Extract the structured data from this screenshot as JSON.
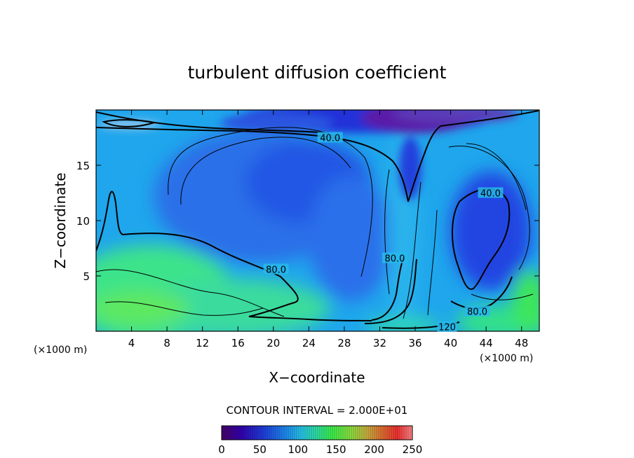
{
  "chart_data": {
    "type": "contour",
    "title": "turbulent diffusion coefficient",
    "xlabel": "X−coordinate",
    "ylabel": "Z−coordinate",
    "x_unit": "(×1000 m)",
    "z_unit": "(×1000 m)",
    "xlim": [
      0,
      50
    ],
    "ylim": [
      0,
      20
    ],
    "xticks": [
      4,
      8,
      12,
      16,
      20,
      24,
      28,
      32,
      36,
      40,
      44,
      48
    ],
    "yticks": [
      5,
      10,
      15
    ],
    "contour_interval_text": "CONTOUR INTERVAL = 2.000E+01",
    "contour_interval": 20,
    "contour_labels": [
      {
        "text": "40.0",
        "x": 26.4,
        "z": 17.5
      },
      {
        "text": "40.0",
        "x": 44.5,
        "z": 12.5
      },
      {
        "text": "80.0",
        "x": 20.3,
        "z": 5.6
      },
      {
        "text": "80.0",
        "x": 33.7,
        "z": 6.6
      },
      {
        "text": "80.0",
        "x": 43.0,
        "z": 1.8
      },
      {
        "text": "120",
        "x": 39.6,
        "z": 0.4
      }
    ],
    "colorbar": {
      "min": 0,
      "max": 250,
      "ticks": [
        "0",
        "50",
        "100",
        "150",
        "200",
        "250"
      ],
      "colors": [
        "#4a006a",
        "#3300b0",
        "#1f3fe0",
        "#1e8ef0",
        "#27c6e8",
        "#2fe0a0",
        "#3cf04a",
        "#8fe040",
        "#c8b040",
        "#e07030",
        "#f03030",
        "#ff8888"
      ]
    }
  }
}
